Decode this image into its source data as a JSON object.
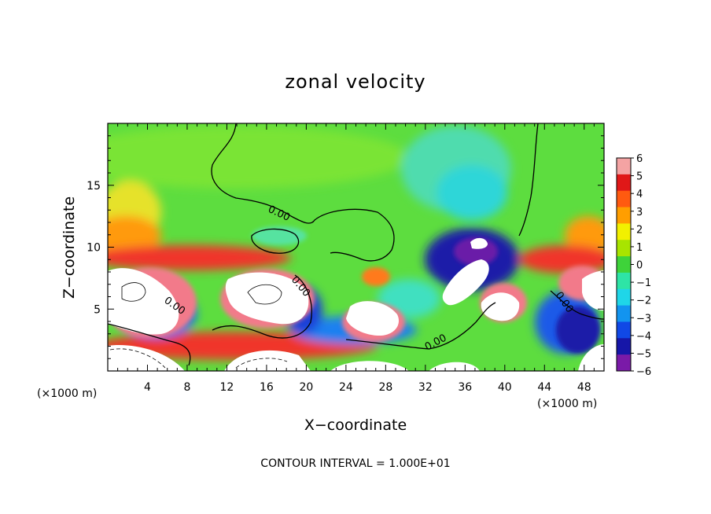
{
  "chart_data": {
    "type": "heatmap",
    "title": "zonal velocity",
    "xlabel": "X−coordinate",
    "ylabel": "Z−coordinate",
    "x_unit_left": "(×1000 m)",
    "x_unit_right": "(×1000 m)",
    "footer": "CONTOUR INTERVAL = 1.000E+01",
    "contour_label": "0.00",
    "xlim": [
      0,
      50
    ],
    "ylim": [
      0,
      20
    ],
    "x_ticks": [
      "4",
      "8",
      "12",
      "16",
      "20",
      "24",
      "28",
      "32",
      "36",
      "40",
      "44",
      "48"
    ],
    "y_ticks": [
      "5",
      "10",
      "15"
    ],
    "colorbar": {
      "levels": [
        "6",
        "5",
        "4",
        "3",
        "2",
        "1",
        "0",
        "−1",
        "−2",
        "−3",
        "−4",
        "−5",
        "−6"
      ],
      "colors": [
        "#f4a3a3",
        "#e01818",
        "#ff5a10",
        "#ff9e00",
        "#f2f000",
        "#a8e400",
        "#3ed33a",
        "#2ee4a6",
        "#1fd6e8",
        "#1294f0",
        "#1048e6",
        "#1616a8",
        "#7a1aa8"
      ]
    },
    "fill_colors": {
      "background": "#66e04a",
      "upper_green": "#74e638",
      "cyan": "#4fe3c8",
      "red": "#f0352a",
      "orange": "#ff8c1a",
      "yellow": "#e8e82a",
      "blue": "#1a6ef0",
      "navy": "#1a1aa8",
      "purple": "#6a1aa8",
      "white": "#ffffff",
      "pink": "#f27a8a",
      "lime": "#a8e020"
    }
  }
}
